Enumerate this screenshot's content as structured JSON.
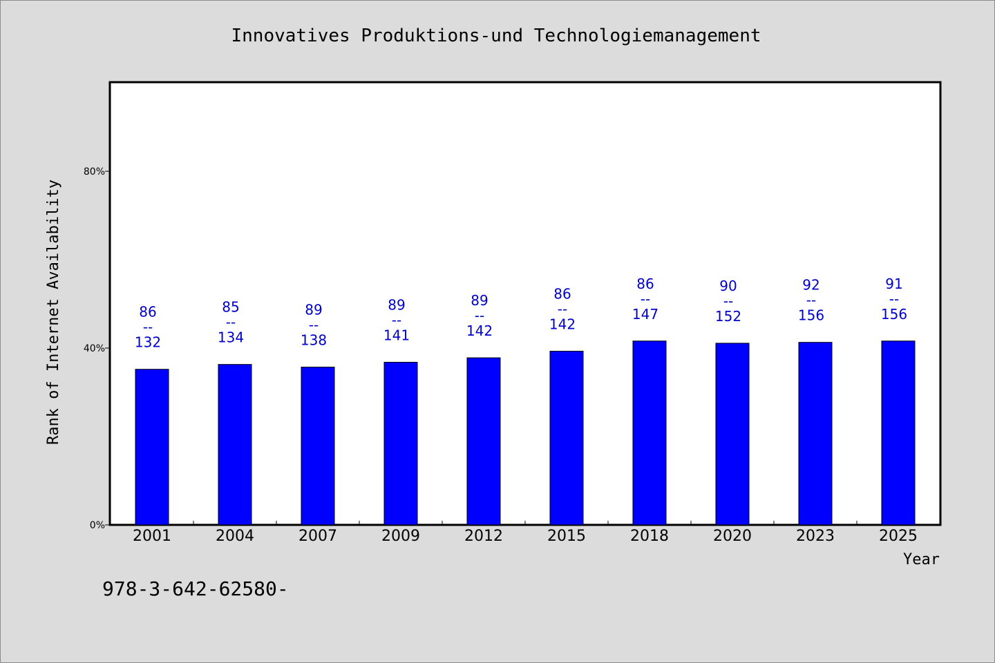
{
  "chart_data": {
    "type": "bar",
    "title": "Innovatives Produktions-und Technologiemanagement",
    "xlabel": "Year",
    "ylabel": "Rank of Internet Availability",
    "ylim": [
      0,
      100
    ],
    "yticks": [
      0,
      40,
      80
    ],
    "ytick_labels": [
      "0%",
      "40%",
      "80%"
    ],
    "categories": [
      "2001",
      "2004",
      "2007",
      "2009",
      "2012",
      "2015",
      "2018",
      "2020",
      "2023",
      "2025"
    ],
    "values": [
      35.2,
      36.3,
      35.7,
      36.8,
      37.8,
      39.3,
      41.6,
      41.1,
      41.3,
      41.6
    ],
    "data_labels": [
      {
        "rank": "86",
        "sep": "--",
        "total": "132"
      },
      {
        "rank": "85",
        "sep": "--",
        "total": "134"
      },
      {
        "rank": "89",
        "sep": "--",
        "total": "138"
      },
      {
        "rank": "89",
        "sep": "--",
        "total": "141"
      },
      {
        "rank": "89",
        "sep": "--",
        "total": "142"
      },
      {
        "rank": "86",
        "sep": "--",
        "total": "142"
      },
      {
        "rank": "86",
        "sep": "--",
        "total": "147"
      },
      {
        "rank": "90",
        "sep": "--",
        "total": "152"
      },
      {
        "rank": "92",
        "sep": "--",
        "total": "156"
      },
      {
        "rank": "91",
        "sep": "--",
        "total": "156"
      }
    ],
    "bar_color": "#0000ff",
    "label_color": "#0000cc",
    "grid": false,
    "legend": "none"
  },
  "footer": {
    "isbn": "978-3-642-62580-"
  }
}
